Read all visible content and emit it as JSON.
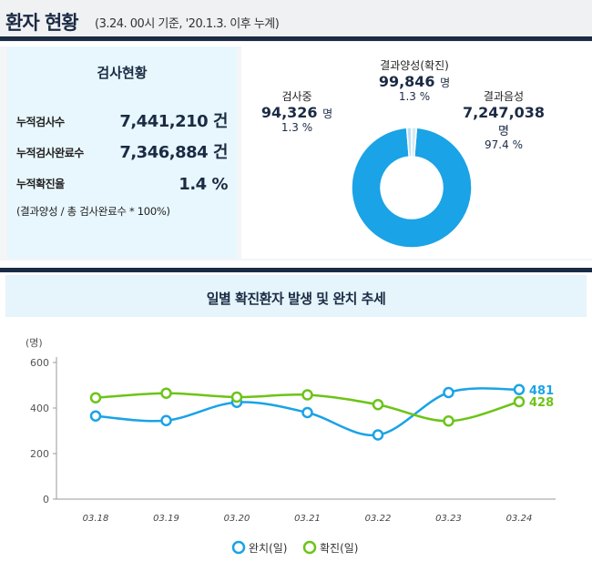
{
  "header": {
    "title": "환자 현황",
    "subtitle": "(3.24. 00시 기준, '20.1.3. 이후 누계)"
  },
  "stats": {
    "title": "검사현황",
    "rows": [
      {
        "label": "누적검사수",
        "value": "7,441,210 건"
      },
      {
        "label": "누적검사완료수",
        "value": "7,346,884 건"
      },
      {
        "label": "누적확진율",
        "value": "1.4 %"
      }
    ],
    "note": "(결과양성 / 총 검사완료수 * 100%)"
  },
  "donut": {
    "colors": {
      "negative": "#1aa3e6",
      "pending": "#b9dff2",
      "positive": "#d6eaf5"
    },
    "segments": [
      {
        "label": "결과음성",
        "value": "7,247,038",
        "unit": "명",
        "pct": "97.4 %",
        "share": 97.4
      },
      {
        "label": "검사중",
        "value": "94,326",
        "unit": "명",
        "pct": "1.3 %",
        "share": 1.3
      },
      {
        "label": "결과양성(확진)",
        "value": "99,846",
        "unit": "명",
        "pct": "1.3 %",
        "share": 1.3
      }
    ]
  },
  "chart_data": {
    "type": "line",
    "title": "일별 확진환자 발생 및 완치 추세",
    "unit_label": "(명)",
    "categories": [
      "03.18",
      "03.19",
      "03.20",
      "03.21",
      "03.22",
      "03.23",
      "03.24"
    ],
    "ylim": [
      0,
      600
    ],
    "yticks": [
      "600",
      "400",
      "200",
      "0"
    ],
    "legend_position": "bottom",
    "grid": false,
    "series": [
      {
        "name": "완치(일)",
        "color": "#1aa3e6",
        "values": [
          365,
          345,
          425,
          380,
          282,
          468,
          481
        ],
        "end_label": "481"
      },
      {
        "name": "확진(일)",
        "color": "#6cc417",
        "values": [
          445,
          465,
          448,
          458,
          415,
          343,
          428
        ],
        "end_label": "428"
      }
    ]
  }
}
